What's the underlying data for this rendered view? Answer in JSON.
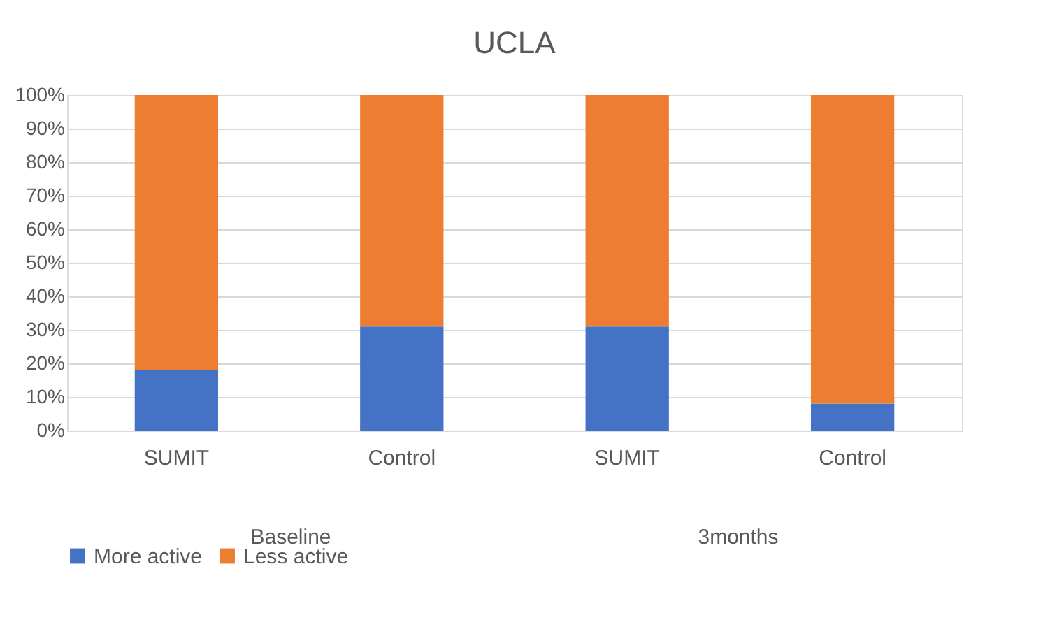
{
  "chart_data": {
    "type": "bar",
    "title": "UCLA",
    "stacked": true,
    "categories": [
      "SUMIT",
      "Control",
      "SUMIT",
      "Control"
    ],
    "series": [
      {
        "name": "More active",
        "color": "#4472c4",
        "values": [
          18,
          31,
          31,
          8
        ]
      },
      {
        "name": "Less active",
        "color": "#ed7d31",
        "values": [
          82,
          69,
          69,
          92
        ]
      }
    ],
    "ylim": [
      0,
      100
    ],
    "yticks": [
      {
        "value": 0,
        "label": "0%"
      },
      {
        "value": 10,
        "label": "10%"
      },
      {
        "value": 20,
        "label": "20%"
      },
      {
        "value": 30,
        "label": "30%"
      },
      {
        "value": 40,
        "label": "40%"
      },
      {
        "value": 50,
        "label": "50%"
      },
      {
        "value": 60,
        "label": "60%"
      },
      {
        "value": 70,
        "label": "70%"
      },
      {
        "value": 80,
        "label": "80%"
      },
      {
        "value": 90,
        "label": "90%"
      },
      {
        "value": 100,
        "label": "100%"
      }
    ],
    "grid": "y",
    "legend": "bottom",
    "annotations": [
      "Baseline",
      "3months"
    ]
  }
}
